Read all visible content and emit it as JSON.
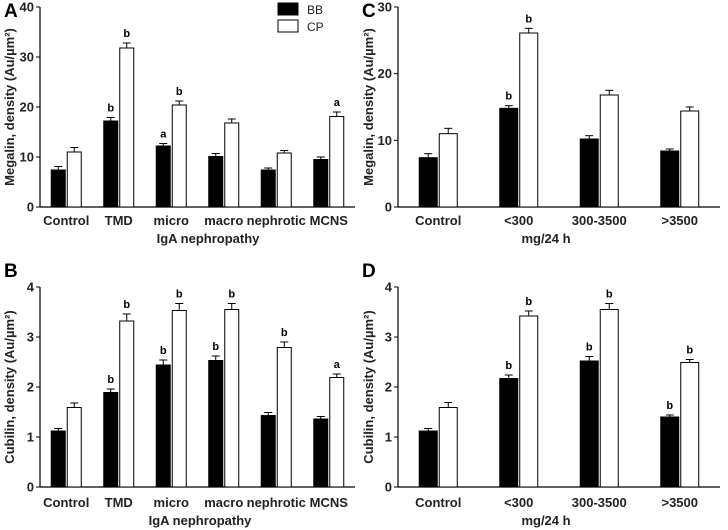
{
  "legend": [
    {
      "name": "BB",
      "fill": "#000000"
    },
    {
      "name": "CP",
      "fill": "#ffffff"
    }
  ],
  "chart_data": [
    {
      "panel": "A",
      "type": "bar",
      "categories": [
        "Control",
        "TMD",
        "micro",
        "macro",
        "nephrotic",
        "MCNS"
      ],
      "xlabel": "IgA nephropathy",
      "ylabel": "Megalin, density (Au/µm²)",
      "ylim": [
        0,
        40
      ],
      "yticks": [
        "0",
        "10",
        "20",
        "30",
        "40"
      ],
      "series": [
        {
          "name": "BB",
          "values": [
            7.4,
            17.2,
            12.2,
            10.1,
            7.4,
            9.5
          ],
          "errors": [
            0.7,
            0.7,
            0.5,
            0.6,
            0.4,
            0.5
          ],
          "sig": [
            "",
            "b",
            "a",
            "",
            "",
            ""
          ]
        },
        {
          "name": "CP",
          "values": [
            11.0,
            31.8,
            20.4,
            16.8,
            10.8,
            18.1
          ],
          "errors": [
            0.9,
            1.0,
            0.8,
            0.8,
            0.5,
            0.9
          ],
          "sig": [
            "",
            "b",
            "b",
            "",
            "",
            "a"
          ]
        }
      ]
    },
    {
      "panel": "B",
      "type": "bar",
      "categories": [
        "Control",
        "TMD",
        "micro",
        "macro",
        "nephrotic",
        "MCNS"
      ],
      "xlabel": "IgA nephropathy",
      "ylabel": "Cubilin, density (Au/µm²)",
      "ylim": [
        0,
        4
      ],
      "yticks": [
        "0",
        "1",
        "2",
        "3",
        "4"
      ],
      "series": [
        {
          "name": "BB",
          "values": [
            1.12,
            1.89,
            2.44,
            2.53,
            1.43,
            1.36
          ],
          "errors": [
            0.05,
            0.07,
            0.1,
            0.09,
            0.06,
            0.05
          ],
          "sig": [
            "",
            "b",
            "b",
            "b",
            "",
            ""
          ]
        },
        {
          "name": "CP",
          "values": [
            1.59,
            3.32,
            3.53,
            3.55,
            2.79,
            2.19
          ],
          "errors": [
            0.09,
            0.14,
            0.14,
            0.12,
            0.11,
            0.07
          ],
          "sig": [
            "",
            "b",
            "b",
            "b",
            "b",
            "a"
          ]
        }
      ]
    },
    {
      "panel": "C",
      "type": "bar",
      "categories": [
        "Control",
        "<300",
        "300-3500",
        ">3500"
      ],
      "xlabel": "mg/24 h",
      "ylabel": "Megalin, density (Au/µm²)",
      "ylim": [
        0,
        30
      ],
      "yticks": [
        "0",
        "10",
        "20",
        "30"
      ],
      "series": [
        {
          "name": "BB",
          "values": [
            7.4,
            14.8,
            10.2,
            8.4
          ],
          "errors": [
            0.6,
            0.4,
            0.5,
            0.3
          ],
          "sig": [
            "",
            "b",
            "",
            ""
          ]
        },
        {
          "name": "CP",
          "values": [
            11.0,
            26.1,
            16.8,
            14.4
          ],
          "errors": [
            0.8,
            0.7,
            0.7,
            0.6
          ],
          "sig": [
            "",
            "b",
            "",
            ""
          ]
        }
      ]
    },
    {
      "panel": "D",
      "type": "bar",
      "categories": [
        "Control",
        "<300",
        "300-3500",
        ">3500"
      ],
      "xlabel": "mg/24 h",
      "ylabel": "Cubilin, density (Au/µm²)",
      "ylim": [
        0,
        4
      ],
      "yticks": [
        "0",
        "1",
        "2",
        "3",
        "4"
      ],
      "series": [
        {
          "name": "BB",
          "values": [
            1.12,
            2.17,
            2.52,
            1.4
          ],
          "errors": [
            0.05,
            0.07,
            0.09,
            0.04
          ],
          "sig": [
            "",
            "b",
            "b",
            "b"
          ]
        },
        {
          "name": "CP",
          "values": [
            1.59,
            3.42,
            3.55,
            2.49
          ],
          "errors": [
            0.1,
            0.1,
            0.12,
            0.06
          ],
          "sig": [
            "",
            "b",
            "b",
            "b"
          ]
        }
      ]
    }
  ]
}
